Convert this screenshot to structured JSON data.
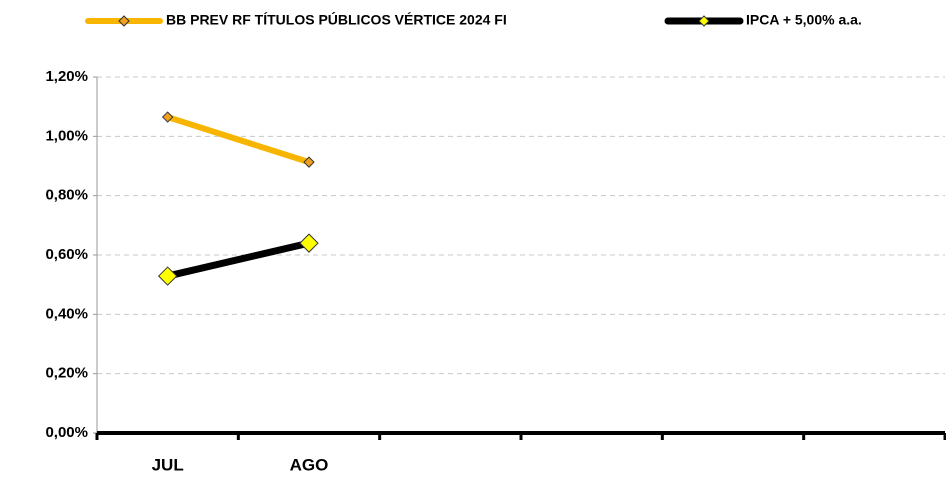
{
  "chart_data": {
    "type": "line",
    "categories": [
      "JUL",
      "AGO",
      null,
      null,
      null,
      null
    ],
    "series": [
      {
        "name": "BB PREV RF TÍTULOS PÚBLICOS VÉRTICE 2024 FI",
        "color": "#f7b500",
        "marker_color": "#f0a020",
        "values": [
          1.065,
          0.913,
          null,
          null,
          null,
          null
        ]
      },
      {
        "name": "IPCA + 5,00% a.a.",
        "color": "#000000",
        "marker_color": "#ffff00",
        "values": [
          0.529,
          0.64,
          null,
          null,
          null,
          null
        ]
      }
    ],
    "ylim": [
      0,
      1.2
    ],
    "yticks": [
      {
        "value": 0,
        "label": "0,00%"
      },
      {
        "value": 0.2,
        "label": "0,20%"
      },
      {
        "value": 0.4,
        "label": "0,40%"
      },
      {
        "value": 0.6,
        "label": "0,60%"
      },
      {
        "value": 0.8,
        "label": "0,80%"
      },
      {
        "value": 1.0,
        "label": "1,00%"
      },
      {
        "value": 1.2,
        "label": "1,20%"
      }
    ],
    "grid": true
  }
}
